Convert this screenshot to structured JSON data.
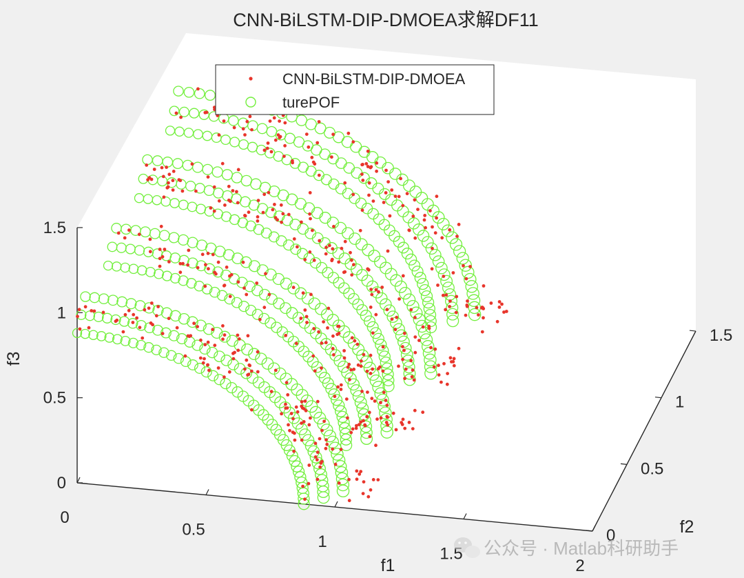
{
  "chart_data": {
    "type": "scatter",
    "title": "CNN-BiLSTM-DIP-DMOEA求解DF11",
    "xlabel": "f1",
    "ylabel": "f2",
    "zlabel": "f3",
    "xlim": [
      0,
      2
    ],
    "ylim": [
      0,
      1.5
    ],
    "zlim": [
      0,
      1.5
    ],
    "x_ticks": [
      "0",
      "0.5",
      "1",
      "1.5",
      "2"
    ],
    "y_ticks": [
      "0",
      "0.5",
      "1",
      "1.5"
    ],
    "z_ticks": [
      "0",
      "0.5",
      "1",
      "1.5"
    ],
    "legend_position": "top-center",
    "series": [
      {
        "name": "CNN-BiLSTM-DIP-DMOEA",
        "marker": "dot",
        "color": "#e8352b",
        "description_fronts": [
          {
            "radius": 1.0,
            "y_offset": 0.0
          },
          {
            "radius": 1.05,
            "y_offset": 0.45
          },
          {
            "radius": 1.1,
            "y_offset": 0.9
          },
          {
            "radius": 1.15,
            "y_offset": 1.35
          }
        ]
      },
      {
        "name": "turePOF",
        "marker": "circle",
        "color": "#72ef3c",
        "description_fronts": [
          {
            "radius": 1.0,
            "y_offset": 0.0
          },
          {
            "radius": 1.05,
            "y_offset": 0.45
          },
          {
            "radius": 1.1,
            "y_offset": 0.9
          },
          {
            "radius": 1.15,
            "y_offset": 1.35
          }
        ]
      }
    ]
  },
  "watermark": {
    "text": "公众号 · Matlab科研助手",
    "icon": "wechat-icon"
  }
}
